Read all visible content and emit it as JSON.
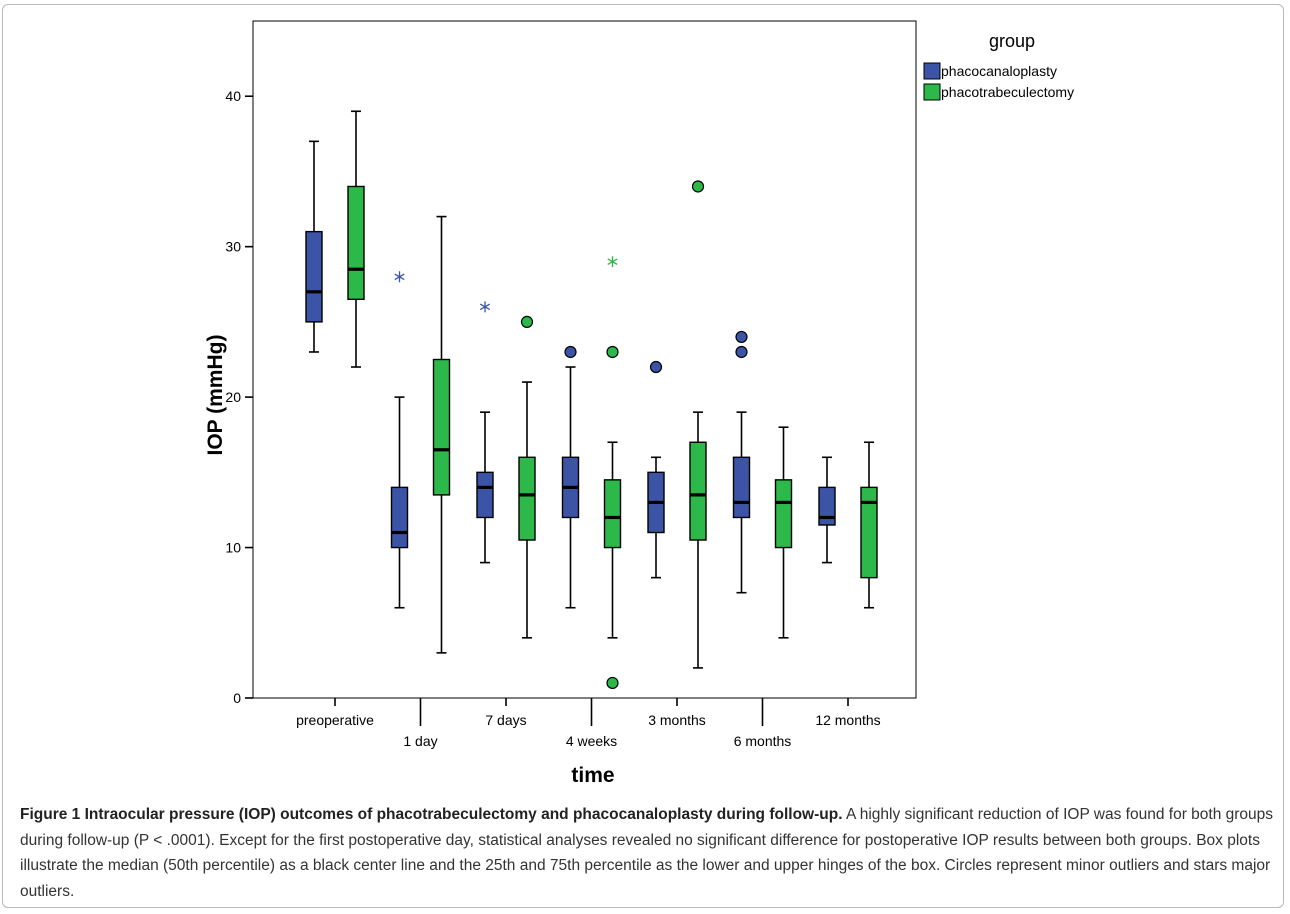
{
  "chart_data": {
    "type": "box",
    "xlabel": "time",
    "ylabel": "IOP (mmHg)",
    "ylim": [
      0,
      45
    ],
    "yticks": [
      0,
      10,
      20,
      30,
      40
    ],
    "categories": [
      "preoperative",
      "1 day",
      "7 days",
      "4 weeks",
      "3 months",
      "6 months",
      "12 months"
    ],
    "legend": {
      "title": "group",
      "position": "right"
    },
    "series": [
      {
        "name": "phacocanaloplasty",
        "color": "#3b54a6",
        "boxes": [
          {
            "min": 23,
            "q1": 25,
            "median": 27,
            "q3": 31,
            "max": 37
          },
          {
            "min": 6,
            "q1": 10,
            "median": 11,
            "q3": 14,
            "max": 20
          },
          {
            "min": 9,
            "q1": 12,
            "median": 14,
            "q3": 15,
            "max": 19
          },
          {
            "min": 6,
            "q1": 12,
            "median": 14,
            "q3": 16,
            "max": 22
          },
          {
            "min": 8,
            "q1": 11,
            "median": 13,
            "q3": 15,
            "max": 16
          },
          {
            "min": 7,
            "q1": 12,
            "median": 13,
            "q3": 16,
            "max": 19
          },
          {
            "min": 9,
            "q1": 11.5,
            "median": 12,
            "q3": 14,
            "max": 16
          }
        ],
        "outliers": [
          {
            "category": "1 day",
            "value": 28,
            "kind": "major"
          },
          {
            "category": "7 days",
            "value": 26,
            "kind": "major"
          },
          {
            "category": "4 weeks",
            "value": 23,
            "kind": "minor"
          },
          {
            "category": "3 months",
            "value": 22,
            "kind": "minor"
          },
          {
            "category": "6 months",
            "value": 23,
            "kind": "minor"
          },
          {
            "category": "6 months",
            "value": 24,
            "kind": "minor"
          }
        ]
      },
      {
        "name": "phacotrabeculectomy",
        "color": "#2db84a",
        "boxes": [
          {
            "min": 22,
            "q1": 26.5,
            "median": 28.5,
            "q3": 34,
            "max": 39
          },
          {
            "min": 3,
            "q1": 13.5,
            "median": 16.5,
            "q3": 22.5,
            "max": 32
          },
          {
            "min": 4,
            "q1": 10.5,
            "median": 13.5,
            "q3": 16,
            "max": 21
          },
          {
            "min": 4,
            "q1": 10,
            "median": 12,
            "q3": 14.5,
            "max": 17
          },
          {
            "min": 2,
            "q1": 10.5,
            "median": 13.5,
            "q3": 17,
            "max": 19
          },
          {
            "min": 4,
            "q1": 10,
            "median": 13,
            "q3": 14.5,
            "max": 18
          },
          {
            "min": 6,
            "q1": 8,
            "median": 13,
            "q3": 14,
            "max": 17
          }
        ],
        "outliers": [
          {
            "category": "7 days",
            "value": 25,
            "kind": "minor"
          },
          {
            "category": "4 weeks",
            "value": 29,
            "kind": "major"
          },
          {
            "category": "4 weeks",
            "value": 23,
            "kind": "minor"
          },
          {
            "category": "4 weeks",
            "value": 1,
            "kind": "minor"
          },
          {
            "category": "3 months",
            "value": 34,
            "kind": "minor"
          }
        ]
      }
    ]
  },
  "caption": {
    "title": "Figure 1 Intraocular pressure (IOP) outcomes of phacotrabeculectomy and phacocanaloplasty during follow-up.",
    "text": " A highly significant reduction of IOP was found for both groups during follow-up (P < .0001). Except for the first postoperative day, statistical analyses revealed no significant difference for postoperative IOP results between both groups. Box plots illustrate the median (50th percentile) as a black center line and the 25th and 75th percentile as the lower and upper hinges of the box. Circles represent minor outliers and stars major outliers."
  }
}
